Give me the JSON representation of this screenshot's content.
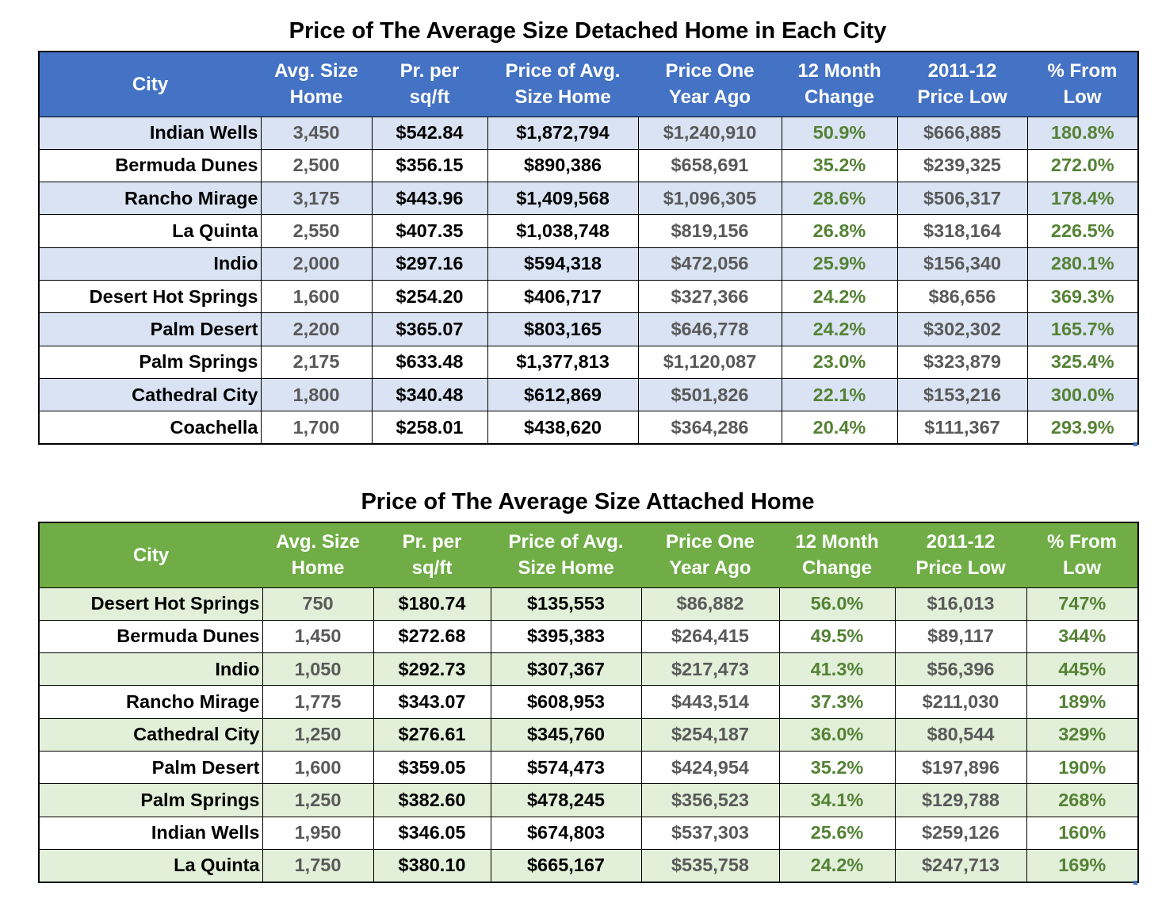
{
  "detached": {
    "title": "Price of The Average Size Detached Home in Each City",
    "headers": [
      [
        "City"
      ],
      [
        "Avg. Size",
        "Home"
      ],
      [
        "Pr. per",
        "sq/ft"
      ],
      [
        "Price of Avg.",
        "Size Home"
      ],
      [
        "Price One",
        "Year Ago"
      ],
      [
        "12 Month",
        "Change"
      ],
      [
        "2011-12",
        "Price Low"
      ],
      [
        "% From",
        "Low"
      ]
    ],
    "rows": [
      [
        "Indian Wells",
        "3,450",
        "$542.84",
        "$1,872,794",
        "$1,240,910",
        "50.9%",
        "$666,885",
        "180.8%"
      ],
      [
        "Bermuda Dunes",
        "2,500",
        "$356.15",
        "$890,386",
        "$658,691",
        "35.2%",
        "$239,325",
        "272.0%"
      ],
      [
        "Rancho Mirage",
        "3,175",
        "$443.96",
        "$1,409,568",
        "$1,096,305",
        "28.6%",
        "$506,317",
        "178.4%"
      ],
      [
        "La Quinta",
        "2,550",
        "$407.35",
        "$1,038,748",
        "$819,156",
        "26.8%",
        "$318,164",
        "226.5%"
      ],
      [
        "Indio",
        "2,000",
        "$297.16",
        "$594,318",
        "$472,056",
        "25.9%",
        "$156,340",
        "280.1%"
      ],
      [
        "Desert Hot Springs",
        "1,600",
        "$254.20",
        "$406,717",
        "$327,366",
        "24.2%",
        "$86,656",
        "369.3%"
      ],
      [
        "Palm Desert",
        "2,200",
        "$365.07",
        "$803,165",
        "$646,778",
        "24.2%",
        "$302,302",
        "165.7%"
      ],
      [
        "Palm Springs",
        "2,175",
        "$633.48",
        "$1,377,813",
        "$1,120,087",
        "23.0%",
        "$323,879",
        "325.4%"
      ],
      [
        "Cathedral City",
        "1,800",
        "$340.48",
        "$612,869",
        "$501,826",
        "22.1%",
        "$153,216",
        "300.0%"
      ],
      [
        "Coachella",
        "1,700",
        "$258.01",
        "$438,620",
        "$364,286",
        "20.4%",
        "$111,367",
        "293.9%"
      ]
    ]
  },
  "attached": {
    "title": "Price of The Average Size Attached Home",
    "headers": [
      [
        "City"
      ],
      [
        "Avg. Size",
        "Home"
      ],
      [
        "Pr. per",
        "sq/ft"
      ],
      [
        "Price of Avg.",
        "Size Home"
      ],
      [
        "Price One",
        "Year Ago"
      ],
      [
        "12 Month",
        "Change"
      ],
      [
        "2011-12",
        "Price Low"
      ],
      [
        "% From",
        "Low"
      ]
    ],
    "rows": [
      [
        "Desert Hot Springs",
        "750",
        "$180.74",
        "$135,553",
        "$86,882",
        "56.0%",
        "$16,013",
        "747%"
      ],
      [
        "Bermuda Dunes",
        "1,450",
        "$272.68",
        "$395,383",
        "$264,415",
        "49.5%",
        "$89,117",
        "344%"
      ],
      [
        "Indio",
        "1,050",
        "$292.73",
        "$307,367",
        "$217,473",
        "41.3%",
        "$56,396",
        "445%"
      ],
      [
        "Rancho Mirage",
        "1,775",
        "$343.07",
        "$608,953",
        "$443,514",
        "37.3%",
        "$211,030",
        "189%"
      ],
      [
        "Cathedral City",
        "1,250",
        "$276.61",
        "$345,760",
        "$254,187",
        "36.0%",
        "$80,544",
        "329%"
      ],
      [
        "Palm Desert",
        "1,600",
        "$359.05",
        "$574,473",
        "$424,954",
        "35.2%",
        "$197,896",
        "190%"
      ],
      [
        "Palm Springs",
        "1,250",
        "$382.60",
        "$478,245",
        "$356,523",
        "34.1%",
        "$129,788",
        "268%"
      ],
      [
        "Indian Wells",
        "1,950",
        "$346.05",
        "$674,803",
        "$537,303",
        "25.6%",
        "$259,126",
        "160%"
      ],
      [
        "La Quinta",
        "1,750",
        "$380.10",
        "$665,167",
        "$535,758",
        "24.2%",
        "$247,713",
        "169%"
      ]
    ]
  },
  "colors": {
    "detached_header": "#4472c4",
    "detached_stripe": "#dae3f3",
    "attached_header": "#70ad47",
    "attached_stripe": "#e2efd9",
    "change_text": "#548235",
    "muted_text": "#595959"
  }
}
